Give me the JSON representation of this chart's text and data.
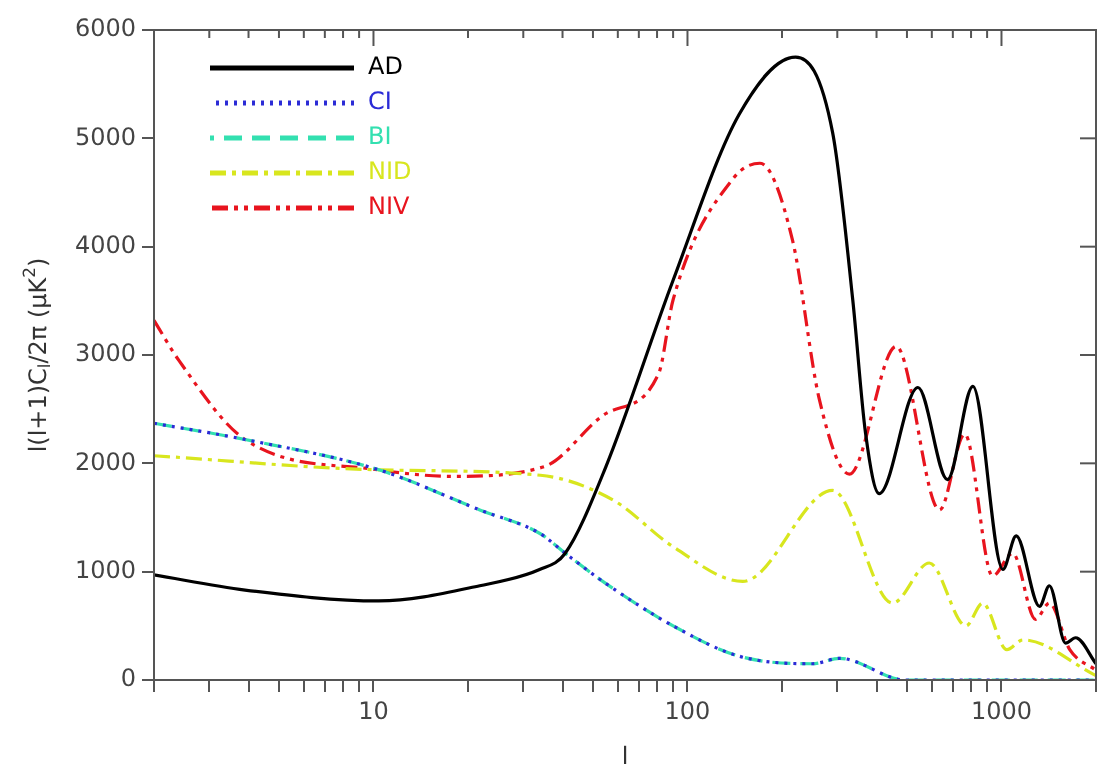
{
  "chart_data": {
    "type": "line",
    "xlabel": "l",
    "ylabel": "l(l+1)C$_{l}$/2π (μK$^{2}$)",
    "log": "x",
    "grid": false,
    "legend": "top left",
    "marker": "none",
    "xlim": [
      2,
      2000
    ],
    "ylim": [
      0,
      6000
    ],
    "xticks": [
      {
        "value": 2,
        "label": null
      },
      {
        "value": 3,
        "label": null
      },
      {
        "value": 4,
        "label": null
      },
      {
        "value": 5,
        "label": null
      },
      {
        "value": 6,
        "label": null
      },
      {
        "value": 7,
        "label": null
      },
      {
        "value": 8,
        "label": null
      },
      {
        "value": 9,
        "label": null
      },
      10,
      {
        "value": 20,
        "label": null
      },
      {
        "value": 30,
        "label": null
      },
      {
        "value": 40,
        "label": null
      },
      {
        "value": 50,
        "label": null
      },
      {
        "value": 60,
        "label": null
      },
      {
        "value": 70,
        "label": null
      },
      {
        "value": 80,
        "label": null
      },
      {
        "value": 90,
        "label": null
      },
      100,
      {
        "value": 200,
        "label": null
      },
      {
        "value": 300,
        "label": null
      },
      {
        "value": 400,
        "label": null
      },
      {
        "value": 500,
        "label": null
      },
      {
        "value": 600,
        "label": null
      },
      {
        "value": 700,
        "label": null
      },
      {
        "value": 800,
        "label": null
      },
      {
        "value": 900,
        "label": null
      },
      1000,
      {
        "value": 2000,
        "label": null
      }
    ],
    "yticks": [
      0,
      1000,
      2000,
      3000,
      4000,
      5000,
      6000
    ],
    "series": [
      {
        "name": "AD",
        "color": "#000000",
        "line_style": "solid",
        "x": [
          2,
          3.9,
          10.4,
          21.8,
          33.8,
          40.8,
          55,
          90,
          146,
          221,
          290,
          336,
          369,
          408,
          542,
          673,
          811,
          1010,
          1114,
          1322,
          1421,
          1600,
          1722,
          2000
        ],
        "values": [
          970,
          830,
          730,
          870,
          1020,
          1170,
          1970,
          3690,
          5220,
          5750,
          5050,
          3510,
          2280,
          1720,
          2700,
          1850,
          2710,
          1020,
          1330,
          680,
          870,
          340,
          390,
          150
        ]
      },
      {
        "name": "CI",
        "color": "#2b2bd6",
        "line_style": "dotted",
        "x": [
          2,
          3.9,
          10.4,
          21.8,
          34,
          40.8,
          55,
          90,
          146,
          250,
          305,
          495,
          1000,
          2000
        ],
        "values": [
          2370,
          2220,
          1940,
          1570,
          1350,
          1170,
          890,
          500,
          220,
          150,
          200,
          0,
          0,
          0
        ]
      },
      {
        "name": "BI",
        "color": "#33e0b0",
        "line_style": "dashed",
        "x": [
          2,
          3.9,
          10.4,
          21.8,
          34,
          40.8,
          55,
          90,
          146,
          250,
          305,
          495,
          1000,
          2000
        ],
        "values": [
          2370,
          2220,
          1940,
          1570,
          1350,
          1170,
          890,
          500,
          220,
          150,
          200,
          0,
          0,
          0
        ]
      },
      {
        "name": "NID",
        "color": "#d8e61e",
        "line_style": "dashdot",
        "x": [
          2,
          10.4,
          34,
          58,
          90,
          150,
          290,
          450,
          589,
          771,
          871,
          1040,
          1170,
          2000
        ],
        "values": [
          2070,
          1940,
          1890,
          1660,
          1230,
          910,
          1750,
          710,
          1080,
          500,
          710,
          280,
          370,
          40
        ]
      },
      {
        "name": "NIV",
        "color": "#e8141e",
        "line_style": "dashdotdot",
        "x": [
          2,
          2.4,
          3.9,
          10.4,
          17.8,
          35,
          55,
          81,
          90,
          139,
          170,
          216,
          263,
          328,
          462,
          635,
          764,
          937,
          1086,
          1283,
          1421,
          1650,
          2000
        ],
        "values": [
          3320,
          2950,
          2220,
          1940,
          1880,
          1970,
          2460,
          2830,
          3510,
          4620,
          4770,
          4060,
          2590,
          1900,
          3080,
          1570,
          2270,
          960,
          1170,
          560,
          710,
          280,
          90
        ]
      }
    ]
  }
}
